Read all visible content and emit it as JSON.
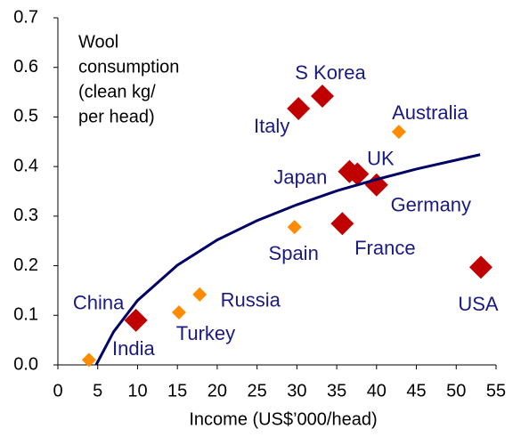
{
  "chart_data": {
    "type": "scatter",
    "title": [
      "Wool",
      "consumption",
      "(clean kg/",
      "per head)"
    ],
    "x_label": "Income (US$’000/head)",
    "xlim": [
      0,
      55
    ],
    "xticks": [
      0,
      5,
      10,
      15,
      20,
      25,
      30,
      35,
      40,
      45,
      50,
      55
    ],
    "ylim": [
      0,
      0.7
    ],
    "yticks": [
      {
        "value": 0,
        "label": "0.0"
      },
      0.1,
      0.2,
      0.3,
      0.4,
      0.5,
      0.6,
      0.7
    ],
    "label_color": "#1a1a80",
    "series": [
      {
        "color": "#c00000",
        "labels": [
          "China",
          "Italy",
          "S Korea",
          "France",
          "Japan",
          "UK",
          "Germany",
          "USA"
        ],
        "x": [
          9.8,
          30.2,
          33.2,
          35.7,
          36.6,
          37.6,
          40,
          53.1
        ],
        "values": [
          0.09,
          0.517,
          0.542,
          0.285,
          0.39,
          0.385,
          0.363,
          0.197
        ]
      },
      {
        "color": "#ff8c00",
        "labels": [
          "India",
          "Turkey",
          "Russia",
          "Spain",
          "Australia"
        ],
        "x": [
          3.9,
          15.2,
          17.8,
          29.7,
          42.8
        ],
        "values": [
          0.01,
          0.106,
          0.142,
          0.278,
          0.47
        ]
      },
      {
        "type": "line",
        "color": "#000066",
        "x": [
          4.8,
          7,
          10,
          15,
          20,
          25,
          30,
          35,
          40,
          45,
          53
        ],
        "values": [
          0,
          0.067,
          0.13,
          0.201,
          0.252,
          0.291,
          0.323,
          0.351,
          0.374,
          0.395,
          0.424
        ]
      }
    ]
  }
}
